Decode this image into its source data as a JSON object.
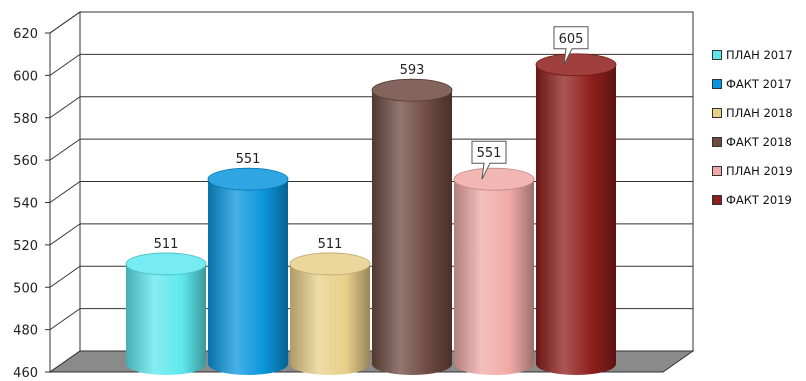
{
  "chart_data": {
    "type": "bar",
    "categories": [
      "ПЛАН 2017",
      "ФАКТ 2017",
      "ПЛАН 2018",
      "ФАКТ 2018",
      "ПЛАН 2019",
      "ФАКТ 2019"
    ],
    "values": [
      511,
      551,
      511,
      593,
      551,
      605
    ],
    "ylim": [
      460,
      620
    ],
    "yticks": [
      "620",
      "600",
      "580",
      "560",
      "540",
      "520",
      "500",
      "480",
      "460"
    ],
    "data_labels": [
      "511",
      "551",
      "511",
      "593",
      "551",
      "605"
    ],
    "colors": [
      "#5ee8ee",
      "#0a96de",
      "#e8d08a",
      "#6e4a40",
      "#f0aaa6",
      "#8e1e1c"
    ],
    "grid": true,
    "legend_position": "right",
    "legend": [
      {
        "label": "ПЛАН 2017",
        "color": "#5ee8ee"
      },
      {
        "label": "ФАКТ 2017",
        "color": "#0a96de"
      },
      {
        "label": "ПЛАН 2018",
        "color": "#e8d08a"
      },
      {
        "label": "ФАКТ 2018",
        "color": "#6e4a40"
      },
      {
        "label": "ПЛАН 2019",
        "color": "#f0aaa6"
      },
      {
        "label": "ФАКТ 2019",
        "color": "#8e1e1c"
      }
    ],
    "title": "",
    "xlabel": "",
    "ylabel": ""
  }
}
